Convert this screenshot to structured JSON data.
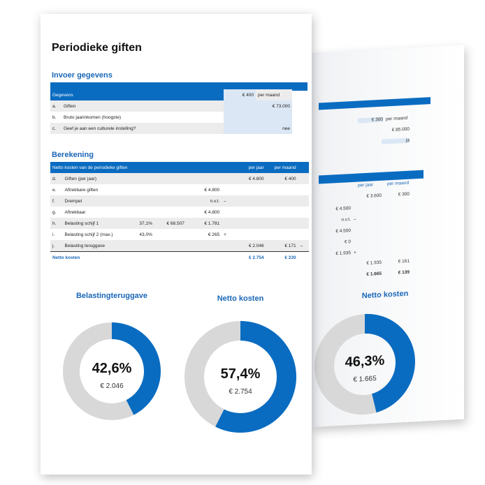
{
  "colors": {
    "accent": "#0a6cc1",
    "gray_segment": "#d8d8d8",
    "title_blue": "#1a67b8"
  },
  "title": "Periodieke giften",
  "invoer": {
    "heading": "Invoer gegevens",
    "header": {
      "label": "Gegevens",
      "value": "€ 400",
      "unit": "per maand"
    },
    "rows": [
      {
        "key": "a.",
        "label": "Giften",
        "value": "€ 73.000"
      },
      {
        "key": "b.",
        "label": "Bruto jaarinkomen (hoogste)",
        "value": ""
      },
      {
        "key": "c.",
        "label": "Geef je aan een culturele instelling?",
        "value": "nee"
      }
    ]
  },
  "berekening": {
    "heading": "Berekening",
    "header": {
      "label": "Netto kosten van de periodieke giften",
      "col1": "per jaar",
      "col2": "per maand"
    },
    "rows": [
      {
        "key": "d.",
        "label": "Giften (per jaar)",
        "p1": "",
        "p2": "",
        "amount": "",
        "op": "",
        "year": "€ 4.800",
        "month": "€ 400",
        "op2": ""
      },
      {
        "key": "e.",
        "label": "Aftrekbare giften",
        "p1": "",
        "p2": "",
        "amount": "€ 4.800",
        "op": "",
        "year": "",
        "month": "",
        "op2": ""
      },
      {
        "key": "f.",
        "label": "Drempel",
        "p1": "",
        "p2": "",
        "amount": "n.v.t.",
        "op": "–",
        "year": "",
        "month": "",
        "op2": ""
      },
      {
        "key": "g.",
        "label": "Aftrekbaar",
        "p1": "",
        "p2": "",
        "amount": "€ 4.800",
        "op": "",
        "year": "",
        "month": "",
        "op2": ""
      },
      {
        "key": "h.",
        "label": "Belasting schijf 1",
        "p1": "37,1%",
        "p2": "€ 68.507",
        "amount": "€ 1.781",
        "op": "",
        "year": "",
        "month": "",
        "op2": ""
      },
      {
        "key": "i.",
        "label": "Belasting schijf 2 (max.)",
        "p1": "43,0%",
        "p2": "",
        "amount": "€ 265",
        "op": "+",
        "year": "",
        "month": "",
        "op2": ""
      },
      {
        "key": "j.",
        "label": "Belasting teruggave",
        "p1": "",
        "p2": "",
        "amount": "",
        "op": "",
        "year": "€ 2.046",
        "month": "€ 171",
        "op2": "–"
      }
    ],
    "total": {
      "label": "Netto kosten",
      "year": "€ 2.754",
      "month": "€ 230"
    }
  },
  "charts": [
    {
      "title": "Belastingteruggave",
      "percent": "42,6%",
      "amount": "€ 2.046",
      "fraction": 0.426
    },
    {
      "title": "Netto kosten",
      "percent": "57,4%",
      "amount": "€ 2.754",
      "fraction": 0.574
    }
  ],
  "back_sheet": {
    "header_value": "€ 300",
    "header_unit": "per maand",
    "input_value": "€ 85.000",
    "input_answer": "ja",
    "col1": "per jaar",
    "col2": "per maand",
    "year": "€ 3.600",
    "month": "€ 300",
    "amounts": [
      "€ 4.500",
      "n.v.t.",
      "€ 4.500",
      "€ 0",
      "€ 1.935"
    ],
    "ops": [
      "",
      "–",
      "",
      "",
      "+"
    ],
    "refund_year": "€ 1.935",
    "refund_month": "€ 161",
    "total_year": "€ 1.665",
    "total_month": "€ 139",
    "chart": {
      "title": "Netto kosten",
      "percent": "46,3%",
      "amount": "€ 1.665",
      "fraction": 0.463
    }
  }
}
